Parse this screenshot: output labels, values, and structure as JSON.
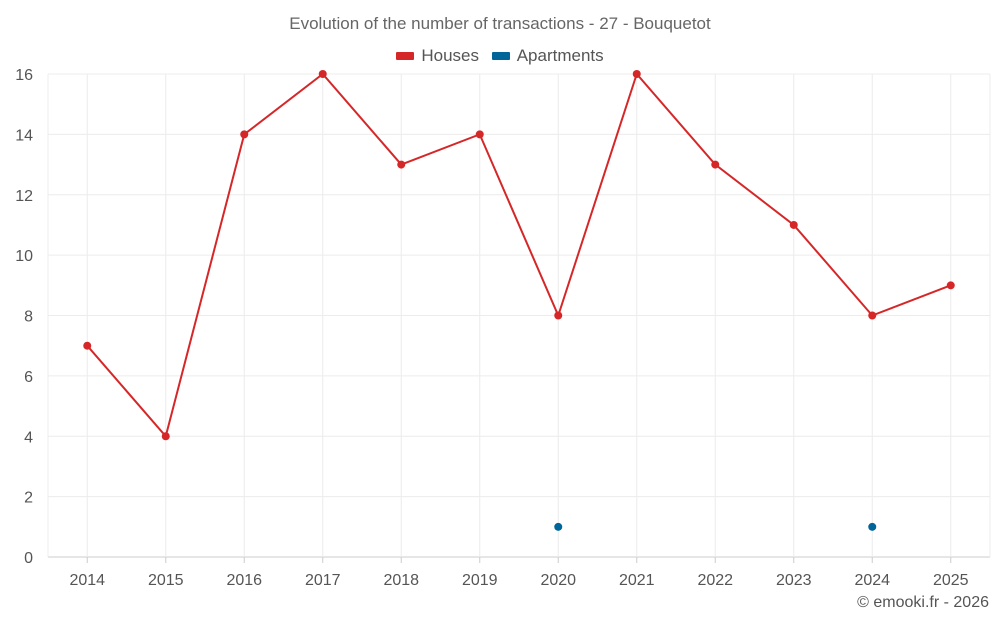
{
  "chart_data": {
    "type": "line",
    "title": "Evolution of the number of transactions - 27 - Bouquetot",
    "categories": [
      "2014",
      "2015",
      "2016",
      "2017",
      "2018",
      "2019",
      "2020",
      "2021",
      "2022",
      "2023",
      "2024",
      "2025"
    ],
    "series": [
      {
        "name": "Houses",
        "color": "#d62728",
        "values": [
          7,
          4,
          14,
          16,
          13,
          14,
          8,
          16,
          13,
          11,
          8,
          9
        ]
      },
      {
        "name": "Apartments",
        "color": "#006699",
        "values": [
          null,
          null,
          null,
          null,
          null,
          null,
          1,
          null,
          null,
          null,
          1,
          null
        ]
      }
    ],
    "ylim": [
      0,
      16
    ],
    "yticks": [
      0,
      2,
      4,
      6,
      8,
      10,
      12,
      14,
      16
    ],
    "grid": true,
    "legend_position": "top-center",
    "xlabel": "",
    "ylabel": ""
  },
  "credit": "© emooki.fr - 2026"
}
